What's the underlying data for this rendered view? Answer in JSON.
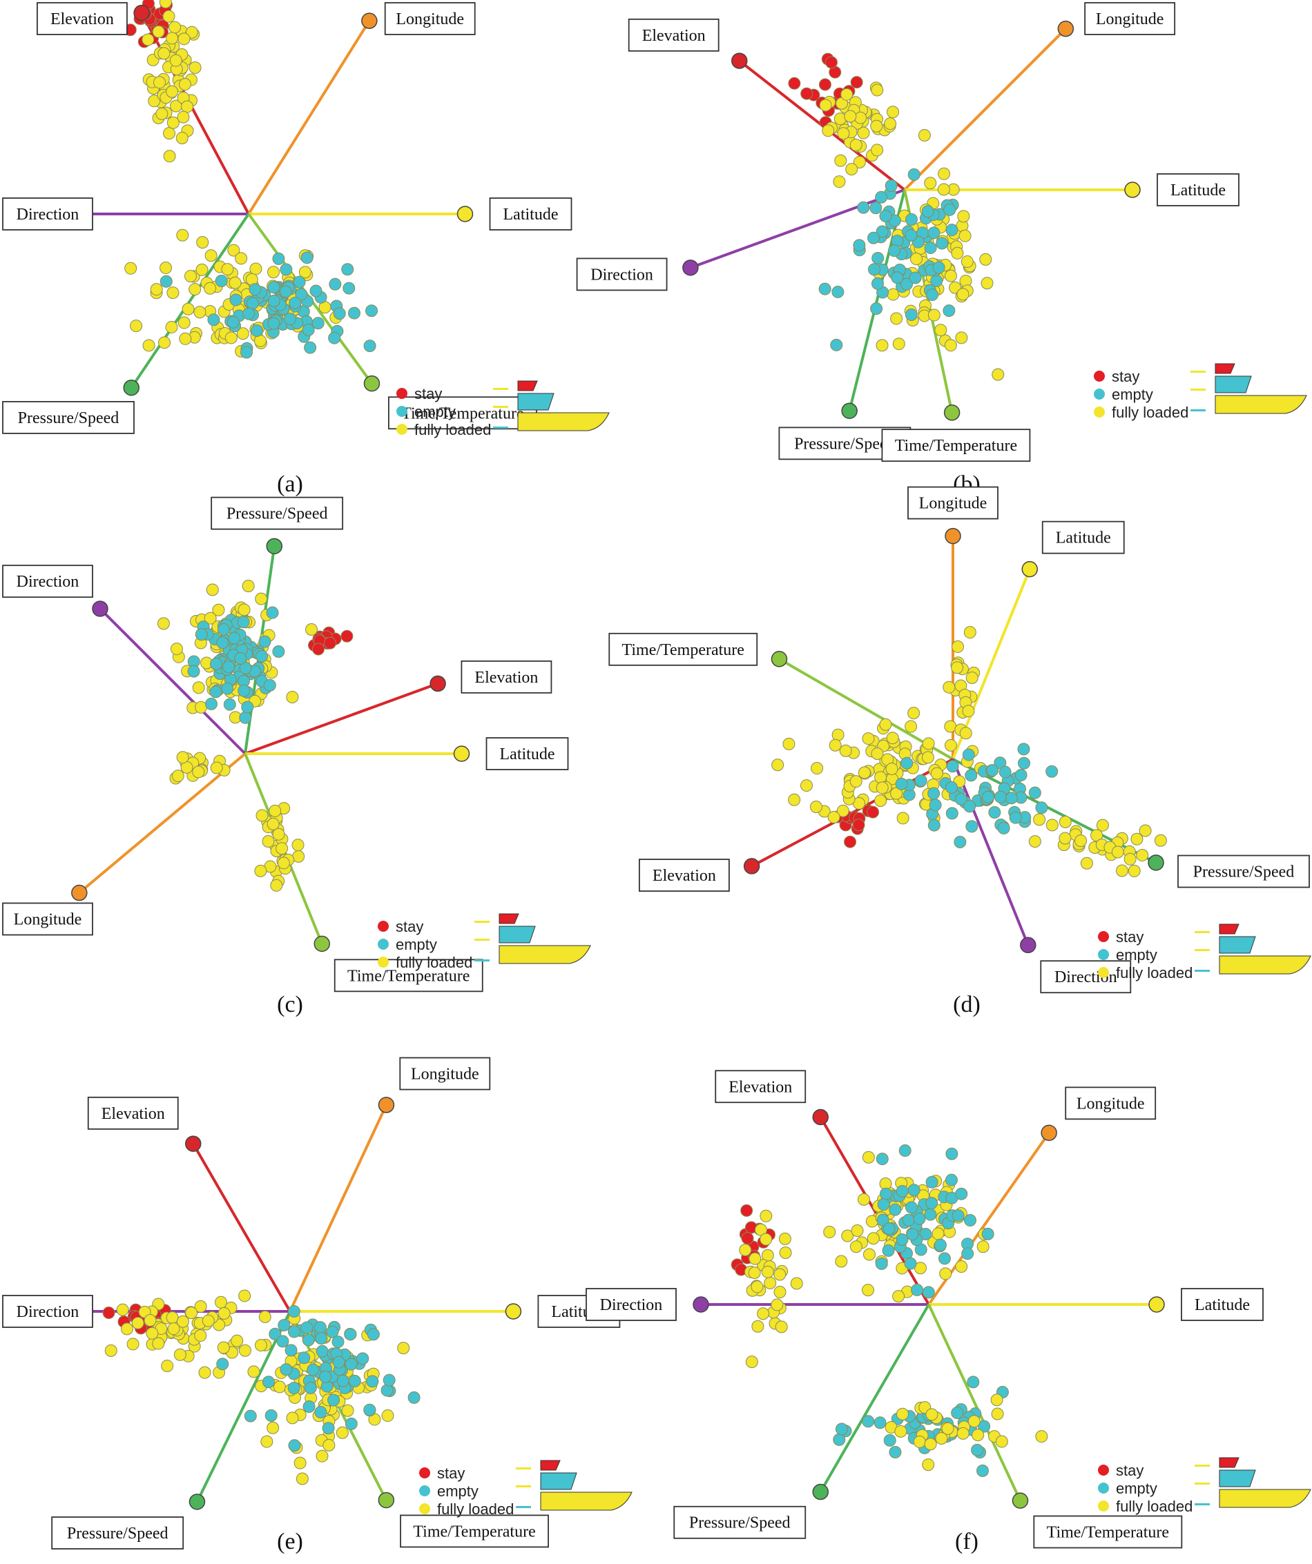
{
  "colors": {
    "stay": "#e31e24",
    "empty": "#45c2cf",
    "fully_loaded": "#f2e52a",
    "Elevation": "#d7272b",
    "Longitude": "#f0922a",
    "Latitude": "#f2e52a",
    "Direction": "#8e3fa6",
    "Pressure/Speed": "#4db35a",
    "Time/Temperature": "#8cc63f"
  },
  "legend": {
    "entries": [
      {
        "key": "stay",
        "label": "stay"
      },
      {
        "key": "empty",
        "label": "empty"
      },
      {
        "key": "fully_loaded",
        "label": "fully loaded"
      }
    ],
    "icon": "ship-load-icon"
  },
  "chart_data": [
    {
      "type": "scatter",
      "caption": "(a)",
      "axes": [
        {
          "name": "Elevation",
          "angle": 118,
          "length": 1.0
        },
        {
          "name": "Longitude",
          "angle": 58,
          "length": 1.0
        },
        {
          "name": "Latitude",
          "angle": 0,
          "length": 0.95
        },
        {
          "name": "Direction",
          "angle": 180,
          "length": 0.95
        },
        {
          "name": "Pressure/Speed",
          "angle": 236,
          "length": 0.92
        },
        {
          "name": "Time/Temperature",
          "angle": 306,
          "length": 0.92
        }
      ],
      "clusters": [
        {
          "class": "stay",
          "count": 18,
          "u": [
            -0.42,
            0.84
          ],
          "spread": [
            0.08,
            0.1
          ]
        },
        {
          "class": "fully_loaded",
          "count": 60,
          "u": [
            -0.33,
            0.6
          ],
          "spread": [
            0.09,
            0.22
          ]
        },
        {
          "class": "fully_loaded",
          "count": 90,
          "u": [
            -0.05,
            -0.38
          ],
          "spread": [
            0.34,
            0.22
          ]
        },
        {
          "class": "empty",
          "count": 75,
          "u": [
            0.14,
            -0.4
          ],
          "spread": [
            0.24,
            0.15
          ]
        }
      ]
    },
    {
      "type": "scatter",
      "caption": "(b)",
      "axes": [
        {
          "name": "Elevation",
          "angle": 142,
          "length": 0.92
        },
        {
          "name": "Longitude",
          "angle": 45,
          "length": 1.0
        },
        {
          "name": "Latitude",
          "angle": 0,
          "length": 1.0
        },
        {
          "name": "Direction",
          "angle": 200,
          "length": 1.0
        },
        {
          "name": "Pressure/Speed",
          "angle": 256,
          "length": 1.0
        },
        {
          "name": "Time/Temperature",
          "angle": 282,
          "length": 1.0
        }
      ],
      "clusters": [
        {
          "class": "stay",
          "count": 15,
          "u": [
            -0.31,
            0.45
          ],
          "spread": [
            0.1,
            0.12
          ]
        },
        {
          "class": "fully_loaded",
          "count": 45,
          "u": [
            -0.2,
            0.28
          ],
          "spread": [
            0.14,
            0.12
          ]
        },
        {
          "class": "fully_loaded",
          "count": 80,
          "u": [
            0.14,
            -0.35
          ],
          "spread": [
            0.2,
            0.3
          ]
        },
        {
          "class": "empty",
          "count": 65,
          "u": [
            0.0,
            -0.3
          ],
          "spread": [
            0.22,
            0.25
          ]
        }
      ]
    },
    {
      "type": "scatter",
      "caption": "(c)",
      "axes": [
        {
          "name": "Pressure/Speed",
          "angle": 82,
          "length": 0.92
        },
        {
          "name": "Direction",
          "angle": 135,
          "length": 0.9
        },
        {
          "name": "Elevation",
          "angle": 20,
          "length": 0.9
        },
        {
          "name": "Latitude",
          "angle": 0,
          "length": 0.95
        },
        {
          "name": "Longitude",
          "angle": 220,
          "length": 0.95
        },
        {
          "name": "Time/Temperature",
          "angle": 292,
          "length": 0.9
        }
      ],
      "clusters": [
        {
          "class": "stay",
          "count": 14,
          "u": [
            0.36,
            0.5
          ],
          "spread": [
            0.06,
            0.04
          ]
        },
        {
          "class": "fully_loaded",
          "count": 80,
          "u": [
            -0.05,
            0.45
          ],
          "spread": [
            0.18,
            0.2
          ]
        },
        {
          "class": "empty",
          "count": 70,
          "u": [
            -0.05,
            0.4
          ],
          "spread": [
            0.14,
            0.18
          ]
        },
        {
          "class": "fully_loaded",
          "count": 28,
          "u": [
            0.15,
            -0.4
          ],
          "spread": [
            0.08,
            0.2
          ]
        },
        {
          "class": "fully_loaded",
          "count": 16,
          "u": [
            -0.22,
            -0.05
          ],
          "spread": [
            0.1,
            0.06
          ]
        }
      ]
    },
    {
      "type": "scatter",
      "caption": "(d)",
      "axes": [
        {
          "name": "Longitude",
          "angle": 90,
          "length": 0.98
        },
        {
          "name": "Latitude",
          "angle": 68,
          "length": 0.9
        },
        {
          "name": "Time/Temperature",
          "angle": 150,
          "length": 0.88
        },
        {
          "name": "Elevation",
          "angle": 208,
          "length": 1.0
        },
        {
          "name": "Pressure/Speed",
          "angle": 333,
          "length": 1.0
        },
        {
          "name": "Direction",
          "angle": 292,
          "length": 0.88
        }
      ],
      "clusters": [
        {
          "class": "stay",
          "count": 12,
          "u": [
            -0.44,
            -0.26
          ],
          "spread": [
            0.1,
            0.06
          ]
        },
        {
          "class": "fully_loaded",
          "count": 95,
          "u": [
            -0.28,
            -0.05
          ],
          "spread": [
            0.28,
            0.18
          ]
        },
        {
          "class": "fully_loaded",
          "count": 30,
          "u": [
            0.6,
            -0.38
          ],
          "spread": [
            0.22,
            0.1
          ]
        },
        {
          "class": "empty",
          "count": 60,
          "u": [
            0.1,
            -0.15
          ],
          "spread": [
            0.25,
            0.16
          ]
        },
        {
          "class": "fully_loaded",
          "count": 18,
          "u": [
            0.05,
            0.3
          ],
          "spread": [
            0.05,
            0.2
          ]
        }
      ]
    },
    {
      "type": "scatter",
      "caption": "(e)",
      "axes": [
        {
          "name": "Longitude",
          "angle": 65,
          "length": 1.0
        },
        {
          "name": "Elevation",
          "angle": 120,
          "length": 0.85
        },
        {
          "name": "Direction",
          "angle": 180,
          "length": 1.0
        },
        {
          "name": "Latitude",
          "angle": 0,
          "length": 0.98
        },
        {
          "name": "Pressure/Speed",
          "angle": 244,
          "length": 0.93
        },
        {
          "name": "Time/Temperature",
          "angle": 297,
          "length": 0.93
        }
      ],
      "clusters": [
        {
          "class": "stay",
          "count": 16,
          "u": [
            -0.62,
            -0.05
          ],
          "spread": [
            0.14,
            0.05
          ]
        },
        {
          "class": "fully_loaded",
          "count": 60,
          "u": [
            -0.45,
            -0.08
          ],
          "spread": [
            0.25,
            0.12
          ]
        },
        {
          "class": "fully_loaded",
          "count": 80,
          "u": [
            0.12,
            -0.32
          ],
          "spread": [
            0.24,
            0.22
          ]
        },
        {
          "class": "empty",
          "count": 70,
          "u": [
            0.2,
            -0.25
          ],
          "spread": [
            0.22,
            0.2
          ]
        }
      ]
    },
    {
      "type": "scatter",
      "caption": "(f)",
      "axes": [
        {
          "name": "Elevation",
          "angle": 120,
          "length": 0.95
        },
        {
          "name": "Longitude",
          "angle": 55,
          "length": 0.92
        },
        {
          "name": "Latitude",
          "angle": 0,
          "length": 1.0
        },
        {
          "name": "Direction",
          "angle": 180,
          "length": 1.0
        },
        {
          "name": "Pressure/Speed",
          "angle": 240,
          "length": 0.95
        },
        {
          "name": "Time/Temperature",
          "angle": 295,
          "length": 0.95
        }
      ],
      "clusters": [
        {
          "class": "stay",
          "count": 12,
          "u": [
            -0.78,
            0.28
          ],
          "spread": [
            0.08,
            0.1
          ]
        },
        {
          "class": "fully_loaded",
          "count": 30,
          "u": [
            -0.7,
            0.1
          ],
          "spread": [
            0.1,
            0.2
          ]
        },
        {
          "class": "fully_loaded",
          "count": 70,
          "u": [
            -0.12,
            0.35
          ],
          "spread": [
            0.22,
            0.22
          ]
        },
        {
          "class": "empty",
          "count": 55,
          "u": [
            -0.05,
            0.35
          ],
          "spread": [
            0.22,
            0.2
          ]
        },
        {
          "class": "empty",
          "count": 40,
          "u": [
            0.05,
            -0.55
          ],
          "spread": [
            0.28,
            0.12
          ]
        },
        {
          "class": "fully_loaded",
          "count": 25,
          "u": [
            0.05,
            -0.55
          ],
          "spread": [
            0.25,
            0.12
          ]
        }
      ]
    }
  ]
}
